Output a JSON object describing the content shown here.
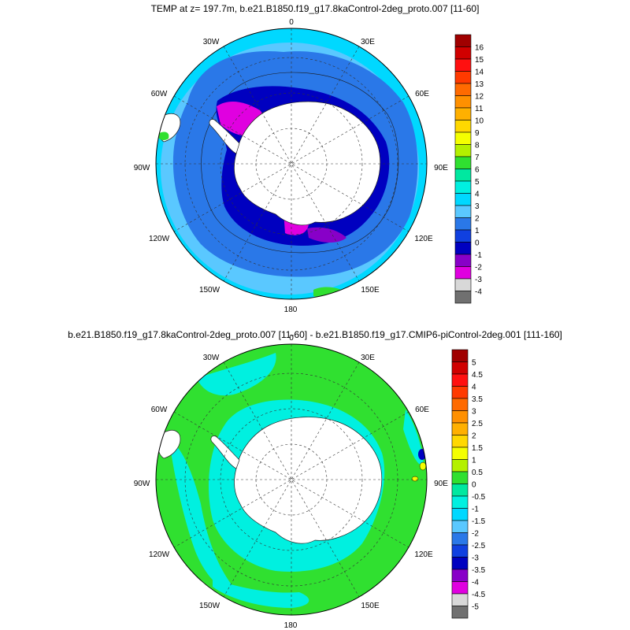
{
  "panels": [
    {
      "title": "TEMP at z= 197.7m, b.e21.B1850.f19_g17.8kaControl-2deg_proto.007 [11-60]",
      "lon_labels": [
        "0",
        "30E",
        "60E",
        "90E",
        "120E",
        "150E",
        "180",
        "150W",
        "120W",
        "90W",
        "60W",
        "30W"
      ],
      "colorbar_labels": [
        "16",
        "15",
        "14",
        "13",
        "12",
        "11",
        "10",
        "9",
        "8",
        "7",
        "6",
        "5",
        "4",
        "3",
        "2",
        "1",
        "0",
        "-1",
        "-2",
        "-3",
        "-4"
      ],
      "colorbar_colors": [
        "#a00000",
        "#d00000",
        "#ff1010",
        "#ff3a00",
        "#ff6a00",
        "#ff9000",
        "#ffb000",
        "#ffd800",
        "#f4ff00",
        "#b4f000",
        "#30e030",
        "#00e8a0",
        "#00f0e0",
        "#00d8ff",
        "#5ac8ff",
        "#2a78e8",
        "#1040e0",
        "#0000c0",
        "#8800c8",
        "#e000e0",
        "#d8d8d8",
        "#707070"
      ]
    },
    {
      "title": "b.e21.B1850.f19_g17.8kaControl-2deg_proto.007 [11-60] - b.e21.B1850.f19_g17.CMIP6-piControl-2deg.001 [111-160]",
      "lon_labels": [
        "0",
        "30E",
        "60E",
        "90E",
        "120E",
        "150E",
        "180",
        "150W",
        "120W",
        "90W",
        "60W",
        "30W"
      ],
      "colorbar_labels": [
        "5",
        "4.5",
        "4",
        "3.5",
        "3",
        "2.5",
        "2",
        "1.5",
        "1",
        "0.5",
        "0",
        "-0.5",
        "-1",
        "-1.5",
        "-2",
        "-2.5",
        "-3",
        "-3.5",
        "-4",
        "-4.5",
        "-5"
      ],
      "colorbar_colors": [
        "#a00000",
        "#d00000",
        "#ff1010",
        "#ff3a00",
        "#ff6a00",
        "#ff9000",
        "#ffb000",
        "#ffd800",
        "#f4ff00",
        "#b4f000",
        "#30e030",
        "#00e8a0",
        "#00f0e0",
        "#00d8ff",
        "#5ac8ff",
        "#2a78e8",
        "#1040e0",
        "#0000c0",
        "#8800c8",
        "#e000e0",
        "#d8d8d8",
        "#707070"
      ]
    }
  ],
  "colors": {
    "ocean_deep_blue": "#2a78e8",
    "ocean_mid_blue": "#5ac8ff",
    "ocean_cyan": "#00d8ff",
    "ice_shelf_blue": "#0000c0",
    "ice_shelf_purple": "#8800c8",
    "ice_shelf_magenta": "#e000e0",
    "anomaly_green": "#30e030",
    "anomaly_cyan": "#00f0e0",
    "land": "#ffffff"
  }
}
